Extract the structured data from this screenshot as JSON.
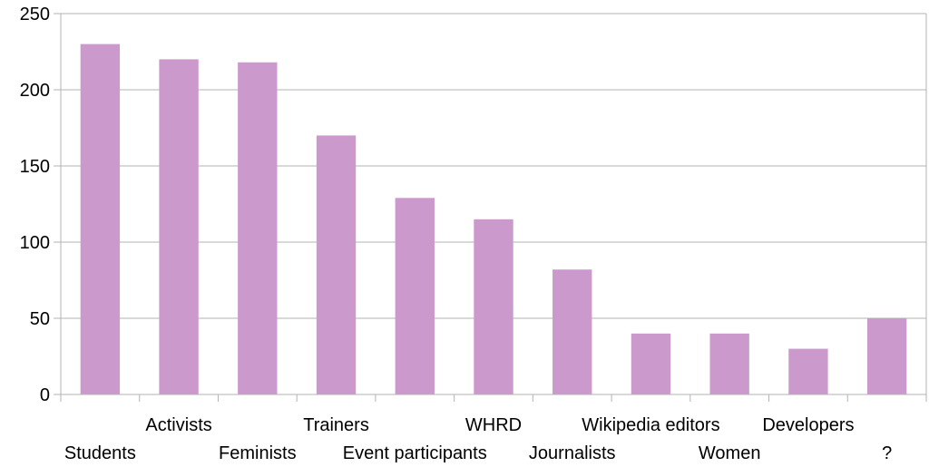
{
  "chart_data": {
    "type": "bar",
    "categories": [
      "Students",
      "Activists",
      "Feminists",
      "Trainers",
      "Event participants",
      "WHRD",
      "Journalists",
      "Wikipedia editors",
      "Women",
      "Developers",
      "?"
    ],
    "values": [
      230,
      220,
      218,
      170,
      129,
      115,
      82,
      40,
      40,
      30,
      50
    ],
    "ylim": [
      0,
      250
    ],
    "yticks": [
      0,
      50,
      100,
      150,
      200,
      250
    ],
    "grid": true,
    "legend": "none",
    "bar_color": "#cc99cc",
    "title": "",
    "xlabel": "",
    "ylabel": ""
  }
}
